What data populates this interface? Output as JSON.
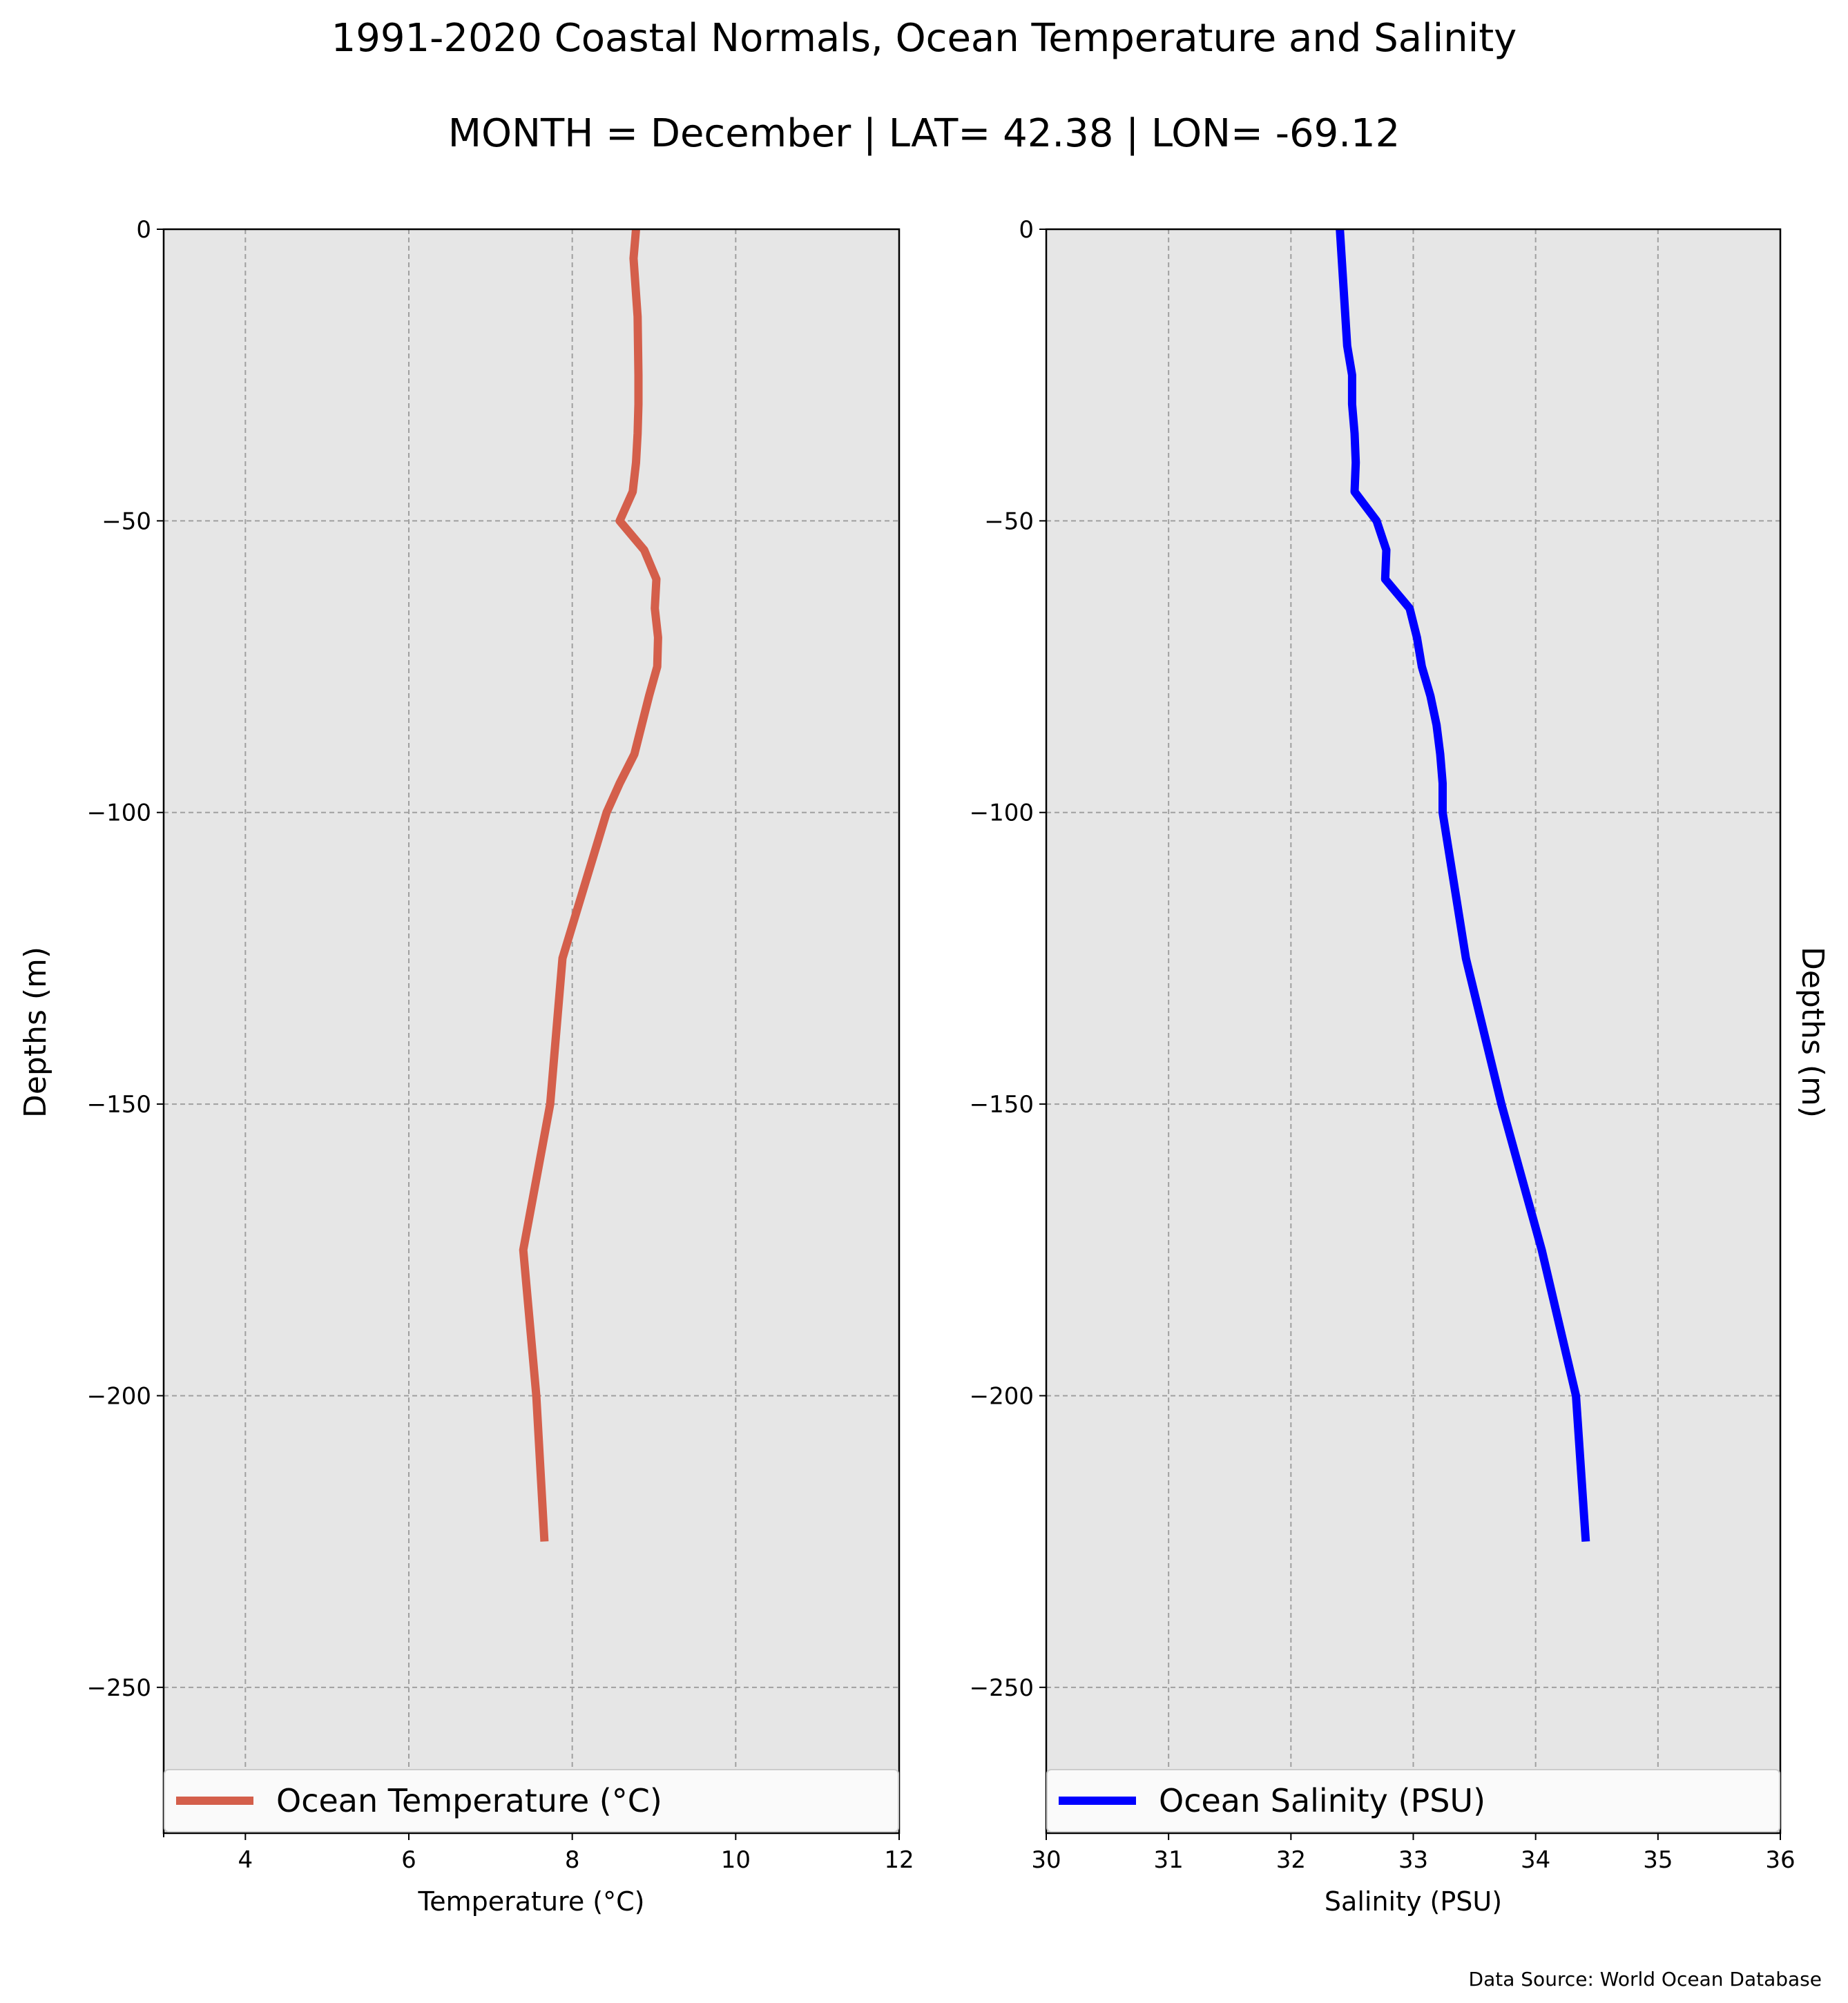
{
  "figure": {
    "title": "1991-2020 Coastal Normals, Ocean Temperature and Salinity",
    "subtitle": "MONTH = December | LAT= 42.38 | LON= -69.12",
    "source": "Data Source: World Ocean Database",
    "background": "#ffffff"
  },
  "chart_data": [
    {
      "type": "line",
      "panel": "left",
      "xlabel": "Temperature (°C)",
      "ylabel": "Depths (m)",
      "xlim": [
        3,
        12
      ],
      "ylim": [
        -275,
        0
      ],
      "xticks": [
        4,
        6,
        8,
        10,
        12
      ],
      "yticks": [
        0,
        -50,
        -100,
        -150,
        -200,
        -250
      ],
      "grid": true,
      "legend_placement": "lower center",
      "plot_background": "#e6e6e6",
      "series": [
        {
          "name": "Ocean Temperature (°C)",
          "color": "#d45f4b",
          "x": [
            8.78,
            8.75,
            8.8,
            8.81,
            8.81,
            8.8,
            8.78,
            8.74,
            8.58,
            8.88,
            9.03,
            9.01,
            9.05,
            9.04,
            8.94,
            8.76,
            8.58,
            8.42,
            7.88,
            7.73,
            7.4,
            7.56,
            7.66
          ],
          "y": [
            0,
            -5,
            -15,
            -25,
            -30,
            -35,
            -40,
            -45,
            -50,
            -55,
            -60,
            -65,
            -70,
            -75,
            -80,
            -90,
            -95,
            -100,
            -125,
            -150,
            -175,
            -200,
            -225
          ]
        }
      ]
    },
    {
      "type": "line",
      "panel": "right",
      "xlabel": "Salinity (PSU)",
      "ylabel": "Depths (m)",
      "xlim": [
        30,
        36
      ],
      "ylim": [
        -275,
        0
      ],
      "xticks": [
        30,
        31,
        32,
        33,
        34,
        35,
        36
      ],
      "yticks": [
        0,
        -50,
        -100,
        -150,
        -200,
        -250
      ],
      "grid": true,
      "legend_placement": "lower center",
      "plot_background": "#e6e6e6",
      "series": [
        {
          "name": "Ocean Salinity (PSU)",
          "color": "#0000ff",
          "x": [
            32.4,
            32.43,
            32.46,
            32.5,
            32.5,
            32.52,
            32.53,
            32.52,
            32.7,
            32.78,
            32.77,
            32.97,
            33.03,
            33.07,
            33.14,
            33.19,
            33.22,
            33.24,
            33.24,
            33.43,
            33.72,
            34.05,
            34.33,
            34.41
          ],
          "y": [
            0,
            -10,
            -20,
            -25,
            -30,
            -35,
            -40,
            -45,
            -50,
            -55,
            -60,
            -65,
            -70,
            -75,
            -80,
            -85,
            -90,
            -95,
            -100,
            -125,
            -150,
            -175,
            -200,
            -225
          ]
        }
      ]
    }
  ]
}
